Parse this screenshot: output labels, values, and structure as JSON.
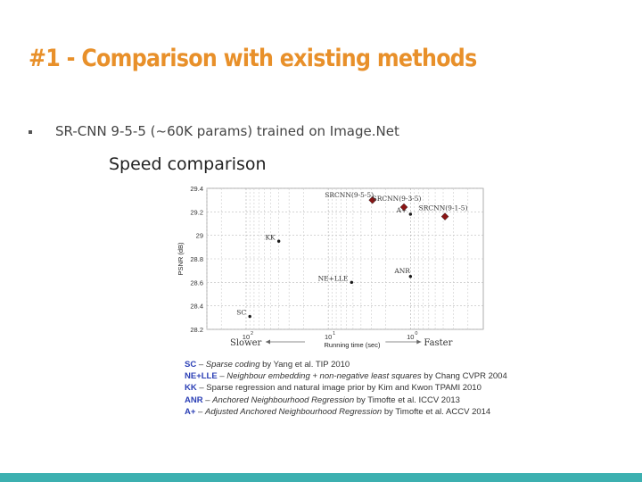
{
  "slide": {
    "title": "#1 - Comparison with existing methods",
    "bullet": "SR-CNN 9-5-5 (~60K params) trained on Image.Net",
    "chart_heading": "Speed comparison",
    "accent_color": "#e8902a",
    "footer_color": "#3cb0b0"
  },
  "chart_data": {
    "type": "scatter",
    "xlabel": "Running time (sec)",
    "ylabel": "PSNR (dB)",
    "xscale": "log",
    "x_direction": "reversed",
    "xlim": [
      300,
      0.13
    ],
    "ylim": [
      28.2,
      29.4
    ],
    "yticks": [
      "29.4",
      "29.2",
      "29",
      "28.8",
      "28.6",
      "28.4",
      "28.2"
    ],
    "xticks": [
      {
        "value": 100,
        "mantissa": "10",
        "exp": "2"
      },
      {
        "value": 10,
        "mantissa": "10",
        "exp": "1"
      },
      {
        "value": 1,
        "mantissa": "10",
        "exp": "0"
      }
    ],
    "slower_label": "Slower",
    "faster_label": "Faster",
    "grid": true,
    "points": [
      {
        "name": "SC",
        "x": 90,
        "y": 28.31,
        "marker": "dot",
        "label_side": "left"
      },
      {
        "name": "KK",
        "x": 40,
        "y": 28.95,
        "marker": "dot",
        "label_side": "left"
      },
      {
        "name": "NE+LLE",
        "x": 5.2,
        "y": 28.6,
        "marker": "dot",
        "label_side": "left"
      },
      {
        "name": "ANR",
        "x": 1.0,
        "y": 28.65,
        "marker": "dot",
        "label_side": "above"
      },
      {
        "name": "A+",
        "x": 1.0,
        "y": 29.18,
        "marker": "dot",
        "label_side": "left"
      },
      {
        "name": "SRCNN(9-5-5)",
        "x": 2.9,
        "y": 29.3,
        "marker": "diamond",
        "label_side": "above"
      },
      {
        "name": "SRCNN(9-3-5)",
        "x": 1.2,
        "y": 29.24,
        "marker": "diamond",
        "label_side": "above"
      },
      {
        "name": "SRCNN(9-1-5)",
        "x": 0.38,
        "y": 29.16,
        "marker": "diamond",
        "label_side": "above"
      }
    ],
    "marker_colors": {
      "dot": "#1a1a1a",
      "diamond": "#8b1515"
    }
  },
  "legend": {
    "items": [
      {
        "abbr": "SC",
        "sep": " – ",
        "method": "Sparse coding",
        "ref": " by Yang et al. TIP 2010"
      },
      {
        "abbr": "NE+LLE",
        "sep": " – ",
        "method": "Neighbour embedding + non-negative least squares",
        "ref": " by Chang CVPR 2004"
      },
      {
        "abbr": "KK",
        "sep": " – ",
        "method": "Sparse regression and natural image prior",
        "ref": " by Kim and Kwon TPAMI 2010"
      },
      {
        "abbr": "ANR",
        "sep": " – ",
        "method": "Anchored Neighbourhood Regression",
        "ref": " by Timofte et al. ICCV 2013"
      },
      {
        "abbr": "A+",
        "sep": " – ",
        "method": "Adjusted Anchored Neighbourhood Regression",
        "ref": " by Timofte et al. ACCV 2014"
      }
    ]
  }
}
